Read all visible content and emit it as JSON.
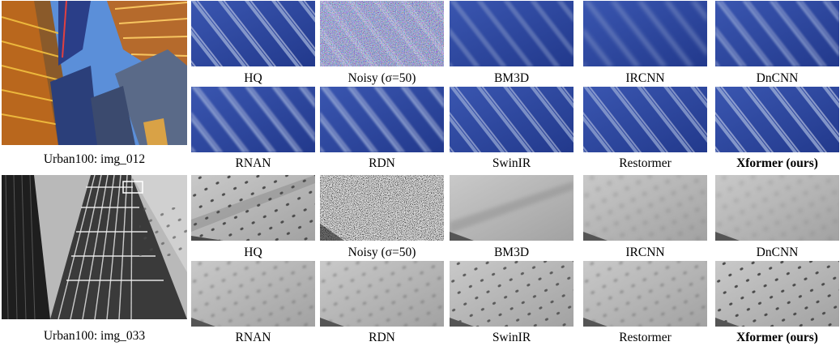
{
  "groups": [
    {
      "image_caption": "Urban100: img_012",
      "rows": [
        [
          "HQ",
          "Noisy (σ=50)",
          "BM3D",
          "IRCNN",
          "DnCNN"
        ],
        [
          "RNAN",
          "RDN",
          "SwinIR",
          "Restormer",
          "Xformer (ours)"
        ]
      ]
    },
    {
      "image_caption": "Urban100: img_033",
      "rows": [
        [
          "HQ",
          "Noisy (σ=50)",
          "BM3D",
          "IRCNN",
          "DnCNN"
        ],
        [
          "RNAN",
          "RDN",
          "SwinIR",
          "Restormer",
          "Xformer (ours)"
        ]
      ]
    }
  ],
  "highlight_method": "Xformer (ours)",
  "colors": {
    "facade_blue": "#2d46a0",
    "mullion": "#a7b4d6",
    "sky": "#5d8fd8",
    "gray_wall": "#b6b6b6",
    "dot": "#4a4a4a"
  }
}
